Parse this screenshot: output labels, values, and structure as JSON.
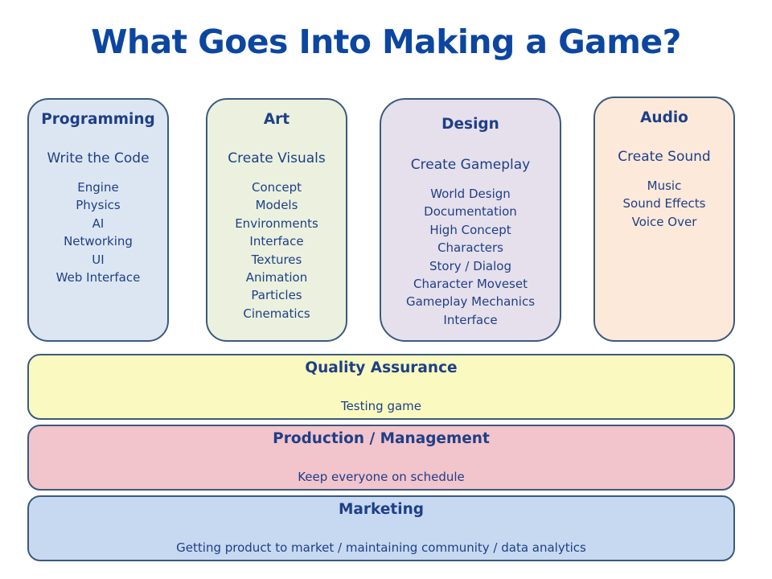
{
  "title": "What Goes Into Making a Game?",
  "columns": [
    {
      "title": "Programming",
      "subtitle": "Write the Code",
      "items": [
        "Engine",
        "Physics",
        "AI",
        "Networking",
        "UI",
        "Web Interface"
      ],
      "color": "#dce6f2"
    },
    {
      "title": "Art",
      "subtitle": "Create Visuals",
      "items": [
        "Concept",
        "Models",
        "Environments",
        "Interface",
        "Textures",
        "Animation",
        "Particles",
        "Cinematics"
      ],
      "color": "#ebf1de"
    },
    {
      "title": "Design",
      "subtitle": "Create Gameplay",
      "items": [
        "World Design",
        "Documentation",
        "High Concept",
        "Characters",
        "Story / Dialog",
        "Character Moveset",
        "Gameplay Mechanics",
        "Interface"
      ],
      "color": "#e6e0ec"
    },
    {
      "title": "Audio",
      "subtitle": "Create Sound",
      "items": [
        "Music",
        "Sound Effects",
        "Voice Over"
      ],
      "color": "#fde9d9"
    }
  ],
  "rows": [
    {
      "title": "Quality Assurance",
      "subtitle": "Testing game",
      "color": "#fafac0"
    },
    {
      "title": "Production / Management",
      "subtitle": "Keep everyone on schedule",
      "color": "#f2c4cc"
    },
    {
      "title": "Marketing",
      "subtitle": "Getting product to market / maintaining community / data analytics",
      "color": "#c6d9f1"
    }
  ]
}
